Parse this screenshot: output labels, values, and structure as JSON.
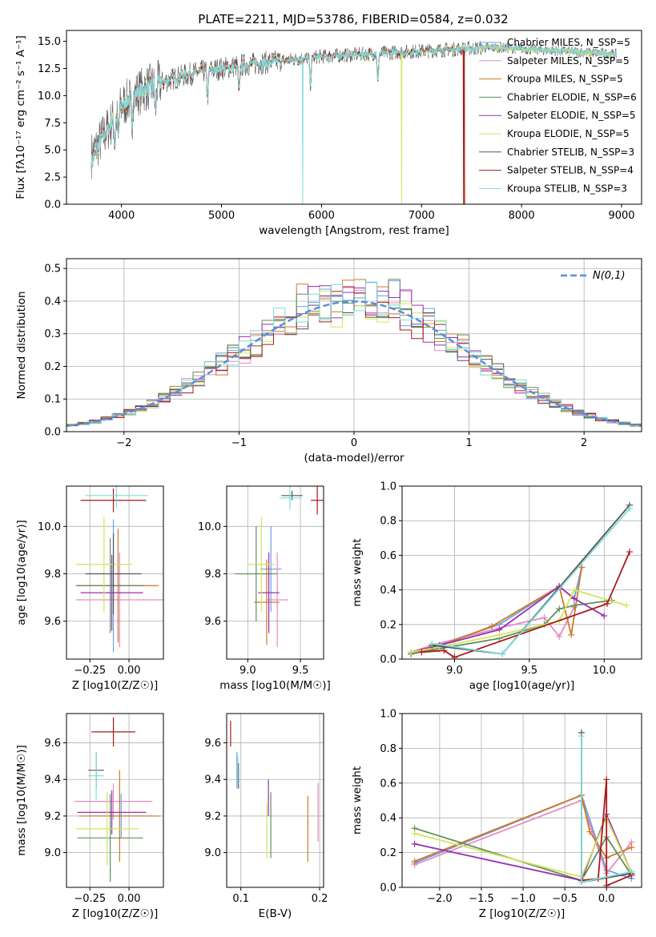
{
  "suptitle": "PLATE=2211, MJD=53786, FIBERID=0584, z=0.032",
  "colors": {
    "chabrier_miles": "#6aa0e0",
    "salpeter_miles": "#e58ac0",
    "kroupa_miles": "#cc7a2a",
    "chabrier_elodie": "#5f8f5f",
    "salpeter_elodie": "#9a2fb0",
    "kroupa_elodie": "#d4e45a",
    "chabrier_stelib": "#555555",
    "salpeter_stelib": "#aa1a1a",
    "kroupa_stelib": "#7fdcdc",
    "norm_curve": "#5b8fd9",
    "grid": "#b0b0b0"
  },
  "chart_data": [
    {
      "id": "spectrum",
      "type": "line",
      "xlabel": "wavelength [Angstrom, rest frame]",
      "ylabel": "Flux [fλ10⁻¹⁷ erg cm⁻² s⁻¹ A⁻¹]",
      "xlim": [
        3450,
        9200
      ],
      "ylim": [
        0,
        16
      ],
      "xticks": [
        4000,
        5000,
        6000,
        7000,
        8000,
        9000
      ],
      "yticks": [
        0.0,
        2.5,
        5.0,
        7.5,
        10.0,
        12.5,
        15.0
      ],
      "grid": false,
      "legend_position": "right",
      "continuum": {
        "x": [
          3700,
          3800,
          3900,
          4000,
          4100,
          4200,
          4400,
          4600,
          4800,
          5000,
          5200,
          5400,
          5600,
          5800,
          6000,
          6200,
          6400,
          6600,
          6800,
          7000,
          7200,
          7400,
          7600,
          7800,
          8000,
          8200,
          8400,
          8600,
          8800,
          8950
        ],
        "y": [
          4.5,
          6.0,
          7.5,
          9.0,
          9.8,
          10.5,
          11.2,
          11.8,
          12.2,
          12.5,
          12.8,
          13.0,
          13.2,
          13.4,
          13.6,
          13.7,
          13.8,
          13.9,
          14.0,
          14.1,
          14.2,
          14.3,
          14.4,
          14.4,
          14.3,
          14.2,
          14.1,
          14.0,
          13.9,
          13.8
        ]
      },
      "legend": [
        "Chabrier MILES, N_SSP=5",
        "Salpeter MILES, N_SSP=5",
        "Kroupa MILES, N_SSP=5",
        "Chabrier ELODIE, N_SSP=6",
        "Salpeter ELODIE, N_SSP=5",
        "Kroupa ELODIE, N_SSP=5",
        "Chabrier STELIB, N_SSP=3",
        "Salpeter STELIB, N_SSP=4",
        "Kroupa STELIB, N_SSP=3"
      ]
    },
    {
      "id": "residual_hist",
      "type": "line",
      "xlabel": "(data-model)/error",
      "ylabel": "Normed distribution",
      "xlim": [
        -2.5,
        2.5
      ],
      "ylim": [
        0,
        0.53
      ],
      "xticks": [
        -2,
        -1,
        0,
        1,
        2
      ],
      "yticks": [
        0.0,
        0.1,
        0.2,
        0.3,
        0.4,
        0.5
      ],
      "grid": true,
      "legend": [
        "N(0,1)"
      ],
      "legend_position": "top-right",
      "bin_width": 0.1
    },
    {
      "id": "age_vs_Z",
      "type": "scatter",
      "xlabel": "Z [log10(Z/Z☉)]",
      "ylabel": "age  [log10(age/yr)]",
      "xlim": [
        -0.4,
        0.22
      ],
      "ylim": [
        9.44,
        10.17
      ],
      "xticks": [
        -0.25,
        0.0
      ],
      "yticks": [
        9.6,
        9.8,
        10.0
      ],
      "grid": true,
      "points": [
        {
          "model": "chabrier_miles",
          "x": -0.1,
          "xerr": 0.15,
          "y": 9.75,
          "yerr": 0.28
        },
        {
          "model": "salpeter_miles",
          "x": -0.06,
          "xerr": 0.28,
          "y": 9.69,
          "yerr": 0.2
        },
        {
          "model": "kroupa_miles",
          "x": -0.07,
          "xerr": 0.26,
          "y": 9.75,
          "yerr": 0.24
        },
        {
          "model": "chabrier_elodie",
          "x": -0.12,
          "xerr": 0.22,
          "y": 9.75,
          "yerr": 0.2
        },
        {
          "model": "salpeter_elodie",
          "x": -0.11,
          "xerr": 0.2,
          "y": 9.72,
          "yerr": 0.16
        },
        {
          "model": "kroupa_elodie",
          "x": -0.16,
          "xerr": 0.18,
          "y": 9.84,
          "yerr": 0.2
        },
        {
          "model": "chabrier_stelib",
          "x": -0.1,
          "xerr": 0.18,
          "y": 9.8,
          "yerr": 0.17
        },
        {
          "model": "salpeter_stelib",
          "x": -0.1,
          "xerr": 0.21,
          "y": 10.11,
          "yerr": 0.05
        },
        {
          "model": "kroupa_stelib",
          "x": -0.08,
          "xerr": 0.2,
          "y": 10.13,
          "yerr": 0.05
        }
      ]
    },
    {
      "id": "age_vs_mass",
      "type": "scatter",
      "xlabel": "mass [log10(M/M☉)]",
      "ylabel": "",
      "xlim": [
        8.8,
        9.72
      ],
      "ylim": [
        9.44,
        10.17
      ],
      "xticks": [
        9.0,
        9.5
      ],
      "yticks": [
        9.6,
        9.8,
        10.0
      ],
      "grid": true,
      "points": [
        {
          "model": "chabrier_miles",
          "x": 9.22,
          "xerr": 0.1,
          "y": 9.82,
          "yerr": 0.18
        },
        {
          "model": "salpeter_miles",
          "x": 9.28,
          "xerr": 0.1,
          "y": 9.69,
          "yerr": 0.2
        },
        {
          "model": "kroupa_miles",
          "x": 9.18,
          "xerr": 0.12,
          "y": 9.68,
          "yerr": 0.18
        },
        {
          "model": "chabrier_elodie",
          "x": 9.08,
          "xerr": 0.2,
          "y": 9.8,
          "yerr": 0.2
        },
        {
          "model": "salpeter_elodie",
          "x": 9.2,
          "xerr": 0.1,
          "y": 9.72,
          "yerr": 0.17
        },
        {
          "model": "kroupa_elodie",
          "x": 9.13,
          "xerr": 0.13,
          "y": 9.84,
          "yerr": 0.2
        },
        {
          "model": "chabrier_stelib",
          "x": 9.42,
          "xerr": 0.1,
          "y": 10.13,
          "yerr": 0.02
        },
        {
          "model": "salpeter_stelib",
          "x": 9.66,
          "xerr": 0.06,
          "y": 10.11,
          "yerr": 0.06
        },
        {
          "model": "kroupa_stelib",
          "x": 9.4,
          "xerr": 0.1,
          "y": 10.12,
          "yerr": 0.05
        }
      ]
    },
    {
      "id": "massweight_vs_age",
      "type": "line",
      "xlabel": "age  [log10(age/yr)]",
      "ylabel": "mass weight",
      "xlim": [
        8.65,
        10.25
      ],
      "ylim": [
        0,
        1
      ],
      "xticks": [
        9.0,
        9.5,
        10.0
      ],
      "yticks": [
        0.0,
        0.2,
        0.4,
        0.6,
        0.8,
        1.0
      ],
      "grid": true,
      "series": [
        {
          "model": "chabrier_miles",
          "x": [
            8.71,
            8.85,
            9.3,
            9.7,
            9.8,
            9.85
          ],
          "y": [
            0.03,
            0.07,
            0.2,
            0.42,
            0.35,
            0.53
          ]
        },
        {
          "model": "salpeter_miles",
          "x": [
            8.71,
            8.85,
            9.3,
            9.6,
            9.7,
            9.8
          ],
          "y": [
            0.04,
            0.08,
            0.18,
            0.24,
            0.13,
            0.3
          ]
        },
        {
          "model": "kroupa_miles",
          "x": [
            8.71,
            8.85,
            9.25,
            9.7,
            9.78,
            9.85
          ],
          "y": [
            0.03,
            0.06,
            0.19,
            0.42,
            0.14,
            0.53
          ]
        },
        {
          "model": "chabrier_elodie",
          "x": [
            8.71,
            8.9,
            9.3,
            9.6,
            9.7,
            9.8,
            10.05
          ],
          "y": [
            0.03,
            0.06,
            0.12,
            0.2,
            0.29,
            0.31,
            0.34
          ]
        },
        {
          "model": "salpeter_elodie",
          "x": [
            8.71,
            8.9,
            9.3,
            9.7,
            9.8,
            10.0
          ],
          "y": [
            0.04,
            0.08,
            0.17,
            0.42,
            0.35,
            0.25
          ]
        },
        {
          "model": "kroupa_elodie",
          "x": [
            8.71,
            8.9,
            9.3,
            9.7,
            9.8,
            10.15
          ],
          "y": [
            0.04,
            0.07,
            0.14,
            0.22,
            0.4,
            0.31
          ]
        },
        {
          "model": "chabrier_stelib",
          "x": [
            8.85,
            9.32,
            10.17
          ],
          "y": [
            0.08,
            0.03,
            0.89
          ]
        },
        {
          "model": "salpeter_stelib",
          "x": [
            8.78,
            8.93,
            9.0,
            10.02,
            10.17
          ],
          "y": [
            0.04,
            0.05,
            0.01,
            0.32,
            0.62
          ]
        },
        {
          "model": "kroupa_stelib",
          "x": [
            8.85,
            9.32,
            10.17
          ],
          "y": [
            0.09,
            0.03,
            0.87
          ]
        }
      ]
    },
    {
      "id": "mass_vs_Z",
      "type": "scatter",
      "xlabel": "Z [log10(Z/Z☉)]",
      "ylabel": "mass [log10(M/M☉)]",
      "xlim": [
        -0.4,
        0.22
      ],
      "ylim": [
        8.81,
        9.76
      ],
      "xticks": [
        -0.25,
        0.0
      ],
      "yticks": [
        9.0,
        9.2,
        9.4,
        9.6
      ],
      "grid": true,
      "points": [
        {
          "model": "chabrier_miles",
          "x": -0.05,
          "xerr": 0.22,
          "y": 9.2,
          "yerr": 0.12
        },
        {
          "model": "salpeter_miles",
          "x": -0.1,
          "xerr": 0.25,
          "y": 9.28,
          "yerr": 0.1
        },
        {
          "model": "kroupa_miles",
          "x": -0.06,
          "xerr": 0.26,
          "y": 9.2,
          "yerr": 0.25
        },
        {
          "model": "chabrier_elodie",
          "x": -0.12,
          "xerr": 0.21,
          "y": 9.08,
          "yerr": 0.24
        },
        {
          "model": "salpeter_elodie",
          "x": -0.11,
          "xerr": 0.22,
          "y": 9.22,
          "yerr": 0.12
        },
        {
          "model": "kroupa_elodie",
          "x": -0.14,
          "xerr": 0.2,
          "y": 9.13,
          "yerr": 0.2
        },
        {
          "model": "chabrier_stelib",
          "x": -0.21,
          "xerr": 0.05,
          "y": 9.45,
          "yerr": 0.1
        },
        {
          "model": "salpeter_stelib",
          "x": -0.1,
          "xerr": 0.14,
          "y": 9.66,
          "yerr": 0.08
        },
        {
          "model": "kroupa_stelib",
          "x": -0.21,
          "xerr": 0.05,
          "y": 9.42,
          "yerr": 0.13
        }
      ]
    },
    {
      "id": "mass_vs_ebv",
      "type": "scatter",
      "xlabel": "E(B-V)",
      "ylabel": "",
      "xlim": [
        0.082,
        0.205
      ],
      "ylim": [
        8.81,
        9.76
      ],
      "xticks": [
        0.1,
        0.2
      ],
      "yticks": [
        9.0,
        9.2,
        9.4,
        9.6
      ],
      "grid": true,
      "points": [
        {
          "model": "chabrier_miles",
          "x": 0.095,
          "xerr": 0,
          "y": 9.45,
          "yerr": 0.1
        },
        {
          "model": "salpeter_miles",
          "x": 0.198,
          "xerr": 0,
          "y": 9.22,
          "yerr": 0.16
        },
        {
          "model": "kroupa_miles",
          "x": 0.185,
          "xerr": 0,
          "y": 9.13,
          "yerr": 0.18
        },
        {
          "model": "chabrier_elodie",
          "x": 0.138,
          "xerr": 0,
          "y": 9.15,
          "yerr": 0.18
        },
        {
          "model": "salpeter_elodie",
          "x": 0.135,
          "xerr": 0,
          "y": 9.3,
          "yerr": 0.1
        },
        {
          "model": "kroupa_elodie",
          "x": 0.133,
          "xerr": 0,
          "y": 9.12,
          "yerr": 0.15
        },
        {
          "model": "chabrier_stelib",
          "x": 0.097,
          "xerr": 0,
          "y": 9.42,
          "yerr": 0.07
        },
        {
          "model": "salpeter_stelib",
          "x": 0.087,
          "xerr": 0,
          "y": 9.65,
          "yerr": 0.07
        },
        {
          "model": "kroupa_stelib",
          "x": 0.096,
          "xerr": 0,
          "y": 9.45,
          "yerr": 0.08
        }
      ]
    },
    {
      "id": "massweight_vs_Z",
      "type": "line",
      "xlabel": "Z [log10(Z/Z☉)]",
      "ylabel": "mass weight",
      "xlim": [
        -2.45,
        0.42
      ],
      "ylim": [
        0,
        1
      ],
      "xticks": [
        -2.0,
        -1.5,
        -1.0,
        -0.5,
        0.0
      ],
      "yticks": [
        0.0,
        0.2,
        0.4,
        0.6,
        0.8,
        1.0
      ],
      "grid": true,
      "series": [
        {
          "model": "chabrier_miles",
          "x": [
            -2.3,
            -0.3,
            0.0,
            0.3
          ],
          "y": [
            0.14,
            0.53,
            0.1,
            0.05
          ]
        },
        {
          "model": "salpeter_miles",
          "x": [
            -2.3,
            -0.3,
            0.0,
            0.3
          ],
          "y": [
            0.13,
            0.5,
            0.08,
            0.26
          ]
        },
        {
          "model": "kroupa_miles",
          "x": [
            -2.3,
            -0.3,
            -0.2,
            0.0,
            0.3
          ],
          "y": [
            0.15,
            0.53,
            0.32,
            0.17,
            0.23
          ]
        },
        {
          "model": "chabrier_elodie",
          "x": [
            -2.3,
            -0.3,
            0.0,
            0.3
          ],
          "y": [
            0.34,
            0.04,
            0.29,
            0.07
          ]
        },
        {
          "model": "salpeter_elodie",
          "x": [
            -2.3,
            -0.3,
            0.0,
            0.3
          ],
          "y": [
            0.25,
            0.04,
            0.42,
            0.08
          ]
        },
        {
          "model": "kroupa_elodie",
          "x": [
            -2.3,
            -0.3,
            0.0,
            0.3
          ],
          "y": [
            0.31,
            0.06,
            0.4,
            0.08
          ]
        },
        {
          "model": "chabrier_stelib",
          "x": [
            -0.3,
            -0.3,
            0.3
          ],
          "y": [
            0.89,
            0.03,
            0.08
          ]
        },
        {
          "model": "salpeter_stelib",
          "x": [
            -0.3,
            -0.1,
            0.0,
            0.0,
            0.3
          ],
          "y": [
            0.04,
            0.05,
            0.62,
            0.01,
            0.07
          ]
        },
        {
          "model": "kroupa_stelib",
          "x": [
            -0.3,
            -0.3,
            0.3
          ],
          "y": [
            0.87,
            0.03,
            0.09
          ]
        }
      ]
    }
  ]
}
